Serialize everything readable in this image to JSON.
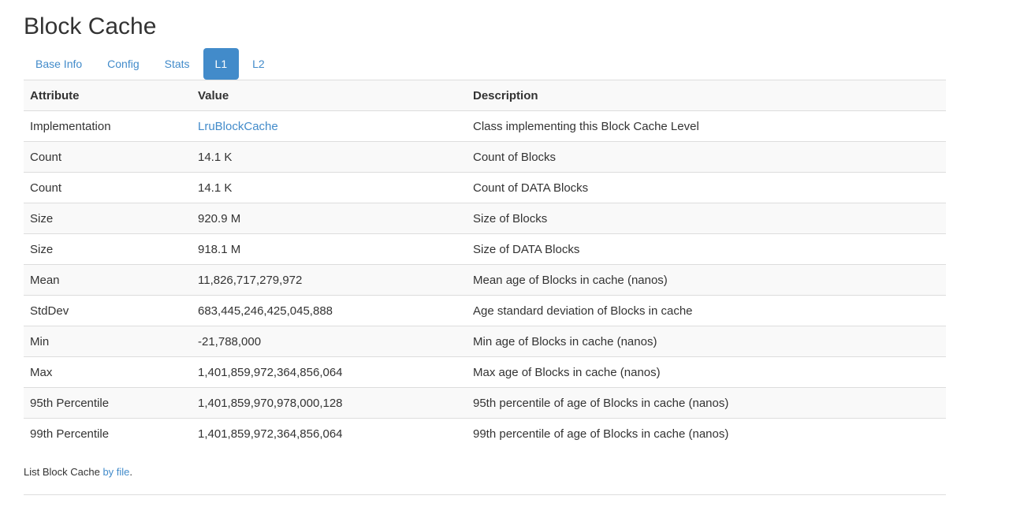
{
  "title": "Block Cache",
  "tabs": [
    {
      "label": "Base Info"
    },
    {
      "label": "Config"
    },
    {
      "label": "Stats"
    },
    {
      "label": "L1",
      "active": true
    },
    {
      "label": "L2"
    }
  ],
  "accent_color": "#428bca",
  "table": {
    "headers": [
      "Attribute",
      "Value",
      "Description"
    ],
    "rows": [
      [
        "Implementation",
        "LruBlockCache",
        "Class implementing this Block Cache Level"
      ],
      [
        "Count",
        "14.1 K",
        "Count of Blocks"
      ],
      [
        "Count",
        "14.1 K",
        "Count of DATA Blocks"
      ],
      [
        "Size",
        "920.9 M",
        "Size of Blocks"
      ],
      [
        "Size",
        "918.1 M",
        "Size of DATA Blocks"
      ],
      [
        "Mean",
        "11,826,717,279,972",
        "Mean age of Blocks in cache (nanos)"
      ],
      [
        "StdDev",
        "683,445,246,425,045,888",
        "Age standard deviation of Blocks in cache"
      ],
      [
        "Min",
        "-21,788,000",
        "Min age of Blocks in cache (nanos)"
      ],
      [
        "Max",
        "1,401,859,972,364,856,064",
        "Max age of Blocks in cache (nanos)"
      ],
      [
        "95th Percentile",
        "1,401,859,970,978,000,128",
        "95th percentile of age of Blocks in cache (nanos)"
      ],
      [
        "99th Percentile",
        "1,401,859,972,364,856,064",
        "99th percentile of age of Blocks in cache (nanos)"
      ]
    ]
  },
  "footer": {
    "prefix": "List Block Cache ",
    "link": "by file",
    "suffix": "."
  }
}
